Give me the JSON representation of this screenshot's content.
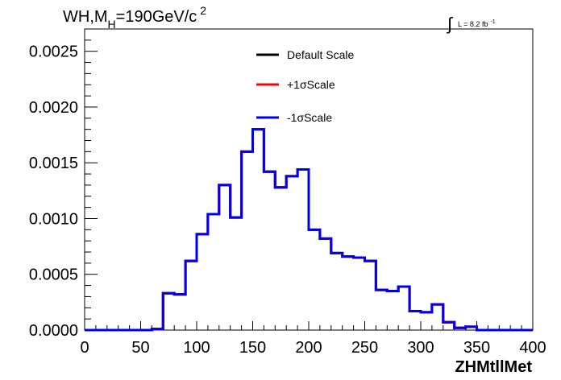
{
  "chart_data": {
    "type": "line",
    "title_main": "WH,M",
    "title_sub": "H",
    "title_rest": "=190GeV/c",
    "title_sup": "2",
    "lumi_int": "∫",
    "lumi_text": "L = 8.2 fb",
    "lumi_sup": "-1",
    "xlabel": "ZHMtllMet",
    "ylabel": "",
    "xlim": [
      0,
      400
    ],
    "ylim": [
      0,
      0.0027
    ],
    "x_ticks": [
      0,
      50,
      100,
      150,
      200,
      250,
      300,
      350,
      400
    ],
    "y_ticks": [
      "0.0000",
      "0.0005",
      "0.0010",
      "0.0015",
      "0.0020",
      "0.0025"
    ],
    "bin_width": 10,
    "bin_edges_start": 0,
    "series": [
      {
        "name": "Default Scale",
        "color": "#000000",
        "values": [
          0,
          0,
          0,
          0,
          0,
          0,
          1e-05,
          0.00033,
          0.00032,
          0.00062,
          0.00086,
          0.00104,
          0.0013,
          0.00101,
          0.0016,
          0.0018,
          0.00142,
          0.00128,
          0.00138,
          0.00144,
          0.0009,
          0.00082,
          0.00069,
          0.00066,
          0.00065,
          0.00062,
          0.00036,
          0.00035,
          0.00039,
          0.00017,
          0.00016,
          0.00023,
          7e-05,
          2e-05,
          3e-05,
          0,
          0,
          0,
          0,
          0
        ]
      },
      {
        "name": "+1σScale",
        "color": "#ff0000",
        "values": [
          0,
          0,
          0,
          0,
          0,
          0,
          1e-05,
          0.00033,
          0.00032,
          0.00062,
          0.00086,
          0.00104,
          0.0013,
          0.00101,
          0.0016,
          0.0018,
          0.00142,
          0.00128,
          0.00138,
          0.00144,
          0.0009,
          0.00082,
          0.00069,
          0.00066,
          0.00065,
          0.00062,
          0.00036,
          0.00035,
          0.00039,
          0.00017,
          0.00016,
          0.00023,
          7e-05,
          2e-05,
          3e-05,
          0,
          0,
          0,
          0,
          0
        ]
      },
      {
        "name": "-1σScale",
        "color": "#0000ee",
        "values": [
          0,
          0,
          0,
          0,
          0,
          0,
          1e-05,
          0.00033,
          0.00032,
          0.00062,
          0.00086,
          0.00104,
          0.0013,
          0.00101,
          0.0016,
          0.0018,
          0.00142,
          0.00128,
          0.00138,
          0.00144,
          0.0009,
          0.00082,
          0.00069,
          0.00066,
          0.00065,
          0.00062,
          0.00036,
          0.00035,
          0.00039,
          0.00017,
          0.00016,
          0.00023,
          7e-05,
          2e-05,
          3e-05,
          0,
          0,
          0,
          0,
          0
        ]
      }
    ],
    "legend": "top-center",
    "grid": false
  }
}
